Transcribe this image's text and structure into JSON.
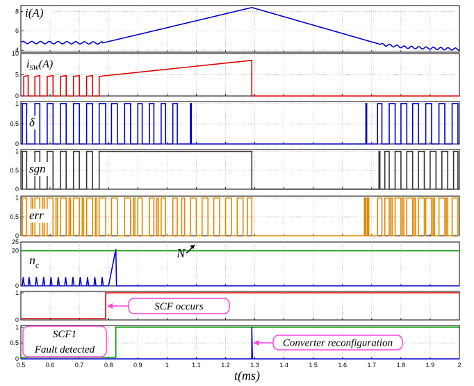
{
  "chart_data": {
    "type": "line",
    "layout": "8 vertically stacked panels sharing one time axis",
    "x_axis": {
      "label": "t(ms)",
      "range": [
        0.5,
        2.0
      ],
      "ticks": [
        "0.5",
        "0.6",
        "0.7",
        "0.8",
        "0.9",
        "1",
        "1.1",
        "1.2",
        "1.3",
        "1.4",
        "1.5",
        "1.6",
        "1.7",
        "1.8",
        "1.9",
        "2"
      ]
    },
    "grid": "dotted",
    "panels": [
      {
        "label": "i(A)",
        "ylim": [
          3.8,
          8.6
        ],
        "yticks": [
          "4",
          "6",
          "8"
        ],
        "series": [
          {
            "color": "#0000cc",
            "points": [
              [
                0.5,
                4.8
              ],
              [
                0.78,
                4.75
              ],
              [
                1.29,
                8.4
              ],
              [
                1.73,
                4.6
              ],
              [
                1.82,
                4.3
              ],
              [
                2.0,
                4.1
              ]
            ],
            "ripple": {
              "from": 0.5,
              "to": 0.78,
              "period": 0.03,
              "amp": 0.12
            },
            "ripple2": {
              "from": 1.73,
              "to": 2.0,
              "period": 0.025,
              "amp": 0.12
            }
          }
        ]
      },
      {
        "label": "i_SW(A)",
        "ylim": [
          0,
          10
        ],
        "yticks": [
          "0",
          "5",
          "10"
        ],
        "series": [
          {
            "color": "#dd0000",
            "segments": [
              [
                [
                  0.5,
                  0
                ],
                [
                  0.51,
                  0
                ],
                [
                  0.51,
                  4.6
                ],
                [
                  0.525,
                  4.8
                ],
                [
                  0.525,
                  0
                ],
                [
                  0.548,
                  0
                ],
                [
                  0.548,
                  4.6
                ],
                [
                  0.565,
                  4.8
                ],
                [
                  0.565,
                  0
                ],
                [
                  0.59,
                  0
                ],
                [
                  0.59,
                  4.6
                ],
                [
                  0.61,
                  4.8
                ],
                [
                  0.61,
                  0
                ],
                [
                  0.635,
                  0
                ],
                [
                  0.635,
                  4.6
                ],
                [
                  0.655,
                  4.8
                ],
                [
                  0.655,
                  0
                ],
                [
                  0.68,
                  0
                ],
                [
                  0.68,
                  4.6
                ],
                [
                  0.7,
                  4.8
                ],
                [
                  0.7,
                  0
                ],
                [
                  0.725,
                  0
                ],
                [
                  0.725,
                  4.6
                ],
                [
                  0.745,
                  4.8
                ],
                [
                  0.745,
                  0
                ],
                [
                  0.768,
                  0
                ],
                [
                  0.768,
                  4.6
                ],
                [
                  0.785,
                  4.75
                ],
                [
                  1.29,
                  8.4
                ],
                [
                  1.29,
                  0
                ],
                [
                  2.0,
                  0
                ]
              ]
            ]
          }
        ]
      },
      {
        "label": "δ",
        "ylim": [
          0,
          1.05
        ],
        "yticks": [
          "0",
          "0.5",
          "1"
        ],
        "series": [
          {
            "color": "#0000cc",
            "pulses": [
              [
                0.505,
                0.52
              ],
              [
                0.548,
                0.565
              ],
              [
                0.59,
                0.61
              ],
              [
                0.635,
                0.655
              ],
              [
                0.68,
                0.7
              ],
              [
                0.725,
                0.745
              ],
              [
                0.768,
                0.79
              ],
              [
                0.81,
                0.83
              ],
              [
                0.855,
                0.875
              ],
              [
                0.9,
                0.915
              ],
              [
                0.94,
                0.955
              ],
              [
                0.98,
                0.995
              ],
              [
                1.02,
                1.035
              ],
              [
                1.08,
                1.083
              ],
              [
                1.68,
                1.683
              ],
              [
                1.72,
                1.735
              ],
              [
                1.76,
                1.78
              ],
              [
                1.8,
                1.82
              ],
              [
                1.84,
                1.86
              ],
              [
                1.885,
                1.905
              ],
              [
                1.93,
                1.95
              ],
              [
                1.975,
                1.995
              ]
            ]
          }
        ]
      },
      {
        "label": "sgn",
        "ylim": [
          0,
          1.05
        ],
        "yticks": [
          "0",
          "0.5",
          "1"
        ],
        "series": [
          {
            "color": "#333333",
            "pulses": [
              [
                0.505,
                0.52
              ],
              [
                0.548,
                0.565
              ],
              [
                0.59,
                0.61
              ],
              [
                0.635,
                0.655
              ],
              [
                0.68,
                0.7
              ],
              [
                0.725,
                0.745
              ],
              [
                0.768,
                1.29
              ],
              [
                1.725,
                1.728
              ],
              [
                1.745,
                1.76
              ],
              [
                1.78,
                1.8
              ],
              [
                1.82,
                1.84
              ],
              [
                1.86,
                1.88
              ],
              [
                1.9,
                1.92
              ],
              [
                1.94,
                1.96
              ],
              [
                1.98,
                1.995
              ]
            ]
          }
        ]
      },
      {
        "label": "err",
        "ylim": [
          0,
          1.05
        ],
        "yticks": [
          "0",
          "0.5",
          "1"
        ],
        "series": [
          {
            "color": "#dd8800",
            "pulses": [
              [
                0.505,
                0.52
              ],
              [
                0.535,
                0.54
              ],
              [
                0.548,
                0.565
              ],
              [
                0.575,
                0.58
              ],
              [
                0.59,
                0.61
              ],
              [
                0.62,
                0.625
              ],
              [
                0.635,
                0.655
              ],
              [
                0.665,
                0.67
              ],
              [
                0.68,
                0.7
              ],
              [
                0.71,
                0.715
              ],
              [
                0.725,
                0.745
              ],
              [
                0.755,
                0.76
              ],
              [
                0.768,
                0.79
              ],
              [
                0.81,
                0.83
              ],
              [
                0.855,
                0.875
              ],
              [
                0.885,
                0.89
              ],
              [
                0.9,
                0.915
              ],
              [
                0.94,
                0.955
              ],
              [
                0.965,
                0.97
              ],
              [
                0.98,
                0.995
              ],
              [
                1.02,
                1.035
              ],
              [
                1.05,
                1.06
              ],
              [
                1.08,
                1.1
              ],
              [
                1.12,
                1.14
              ],
              [
                1.16,
                1.18
              ],
              [
                1.2,
                1.22
              ],
              [
                1.24,
                1.26
              ],
              [
                1.275,
                1.29
              ],
              [
                1.675,
                1.678
              ],
              [
                1.68,
                1.685
              ],
              [
                1.688,
                1.69
              ],
              [
                1.72,
                1.735
              ],
              [
                1.745,
                1.76
              ],
              [
                1.765,
                1.77
              ],
              [
                1.78,
                1.8
              ],
              [
                1.805,
                1.81
              ],
              [
                1.82,
                1.84
              ],
              [
                1.845,
                1.85
              ],
              [
                1.86,
                1.88
              ],
              [
                1.885,
                1.905
              ],
              [
                1.91,
                1.915
              ],
              [
                1.93,
                1.95
              ],
              [
                1.955,
                1.96
              ],
              [
                1.975,
                1.995
              ]
            ]
          }
        ]
      },
      {
        "label": "n_c",
        "ylim": [
          0,
          25
        ],
        "yticks": [
          "0",
          "20",
          "25"
        ],
        "series": [
          {
            "color": "#0000cc",
            "points": [
              [
                0.5,
                0
              ],
              [
                0.505,
                0
              ],
              [
                0.508,
                5
              ],
              [
                0.512,
                0
              ],
              [
                0.525,
                0
              ],
              [
                0.528,
                5
              ],
              [
                0.532,
                0
              ],
              [
                0.55,
                0
              ],
              [
                0.553,
                5
              ],
              [
                0.557,
                0
              ],
              [
                0.575,
                0
              ],
              [
                0.578,
                5
              ],
              [
                0.582,
                0
              ],
              [
                0.6,
                0
              ],
              [
                0.603,
                5
              ],
              [
                0.607,
                0
              ],
              [
                0.625,
                0
              ],
              [
                0.628,
                5
              ],
              [
                0.632,
                0
              ],
              [
                0.65,
                0
              ],
              [
                0.653,
                5
              ],
              [
                0.657,
                0
              ],
              [
                0.675,
                0
              ],
              [
                0.678,
                5
              ],
              [
                0.682,
                0
              ],
              [
                0.7,
                0
              ],
              [
                0.703,
                5
              ],
              [
                0.707,
                0
              ],
              [
                0.725,
                0
              ],
              [
                0.728,
                5
              ],
              [
                0.732,
                0
              ],
              [
                0.75,
                0
              ],
              [
                0.753,
                5
              ],
              [
                0.757,
                0
              ],
              [
                0.775,
                0
              ],
              [
                0.778,
                5
              ],
              [
                0.782,
                0
              ],
              [
                0.8,
                0
              ],
              [
                0.825,
                21
              ],
              [
                0.827,
                0
              ],
              [
                2.0,
                0
              ]
            ]
          },
          {
            "color": "#009900",
            "points": [
              [
                0.5,
                20
              ],
              [
                2.0,
                20
              ]
            ]
          }
        ],
        "annotations": [
          {
            "text": "N",
            "x": 1.09,
            "y": 17
          }
        ]
      },
      {
        "label": "",
        "ylim": [
          0,
          1.05
        ],
        "yticks": [
          "0",
          "1"
        ],
        "series": [
          {
            "color": "#dd0000",
            "points": [
              [
                0.5,
                0.05
              ],
              [
                0.79,
                0.05
              ],
              [
                0.79,
                1
              ],
              [
                2.0,
                1
              ]
            ]
          }
        ]
      },
      {
        "label": "",
        "ylim": [
          0,
          1.05
        ],
        "yticks": [
          "0",
          "0.5",
          "1"
        ],
        "series": [
          {
            "color": "#009900",
            "points": [
              [
                0.5,
                0.05
              ],
              [
                0.825,
                0.05
              ],
              [
                0.825,
                1
              ],
              [
                2.0,
                1
              ]
            ]
          },
          {
            "color": "#0000cc",
            "points": [
              [
                0.5,
                0
              ],
              [
                1.29,
                0
              ],
              [
                1.29,
                1
              ],
              [
                1.292,
                0
              ],
              [
                2.0,
                0
              ]
            ]
          }
        ]
      }
    ],
    "callouts": [
      {
        "text": "SCF occurs",
        "panel": 6
      },
      {
        "text": "SCF1 Fault detected",
        "lines": [
          "SCF1",
          "Fault detected"
        ],
        "panel": 7
      },
      {
        "text": "Converter reconfiguration",
        "panel": 7
      }
    ],
    "callout_color": "#ff44dd"
  }
}
